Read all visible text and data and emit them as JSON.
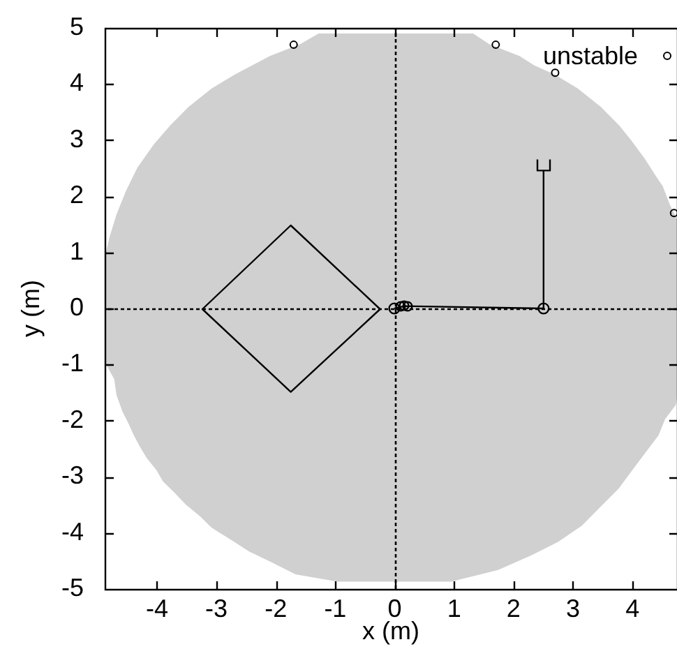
{
  "chart_data": {
    "type": "scatter",
    "xlabel": "x (m)",
    "ylabel": "y (m)",
    "xlim": [
      -4.88,
      4.75
    ],
    "ylim": [
      -5,
      5
    ],
    "xticks": [
      -4,
      -3,
      -2,
      -1,
      0,
      1,
      2,
      3,
      4
    ],
    "yticks": [
      -5,
      -4,
      -3,
      -2,
      -1,
      0,
      1,
      2,
      3,
      4,
      5
    ],
    "grid": false,
    "legend": "top right",
    "ref_lines": [
      {
        "axis": "x",
        "value": 0,
        "color": "#000000",
        "line_style": "dotted"
      },
      {
        "axis": "y",
        "value": 0,
        "color": "#000000",
        "line_style": "dotted"
      }
    ],
    "series": [
      {
        "type": "area",
        "color": "#d0d0d0",
        "x": [
          -4.88,
          -4.8,
          -4.68,
          -4.52,
          -4.33,
          -4.05,
          -3.78,
          -3.47,
          -3.08,
          -2.69,
          -2.1,
          -1.59,
          -1.28,
          1.32,
          1.59,
          2.1,
          2.35,
          2.69,
          3.08,
          3.47,
          3.78,
          3.97,
          4.2,
          4.4,
          4.51,
          4.63,
          4.75
        ],
        "values": [
          0.9,
          1.27,
          1.68,
          2.1,
          2.51,
          2.93,
          3.26,
          3.59,
          3.92,
          4.17,
          4.5,
          4.71,
          4.9,
          4.9,
          4.71,
          4.5,
          4.33,
          4.17,
          3.92,
          3.59,
          3.26,
          3.01,
          2.68,
          2.35,
          2.18,
          1.85,
          1.59
        ]
      },
      {
        "type": "area",
        "color": "#d0d0d0",
        "x": [
          -4.88,
          -4.72,
          -4.68,
          -4.58,
          -4.48,
          -4.39,
          -4.29,
          -4.17,
          -4.01,
          -3.9,
          -3.7,
          -3.51,
          -3.27,
          -3.08,
          -2.76,
          -2.45,
          -2.06,
          -1.67,
          -0.96,
          0.95,
          1.74,
          2.28,
          2.75,
          3.15,
          3.46,
          3.77,
          4.0,
          4.24,
          4.44,
          4.55,
          4.73,
          4.75
        ],
        "values": [
          -0.95,
          -1.26,
          -1.55,
          -1.84,
          -2.05,
          -2.26,
          -2.46,
          -2.67,
          -2.88,
          -3.08,
          -3.29,
          -3.5,
          -3.71,
          -3.91,
          -4.12,
          -4.33,
          -4.53,
          -4.74,
          -4.87,
          -4.87,
          -4.66,
          -4.41,
          -4.16,
          -3.87,
          -3.54,
          -3.21,
          -2.88,
          -2.54,
          -2.26,
          -1.97,
          -1.72,
          -1.6
        ]
      },
      {
        "type": "scatter",
        "name": "unstable",
        "color": "#000000",
        "marker": "circle",
        "x": [
          -1.7,
          1.7,
          2.7,
          4.7
        ],
        "values": [
          4.7,
          4.7,
          4.2,
          1.7
        ]
      }
    ]
  }
}
